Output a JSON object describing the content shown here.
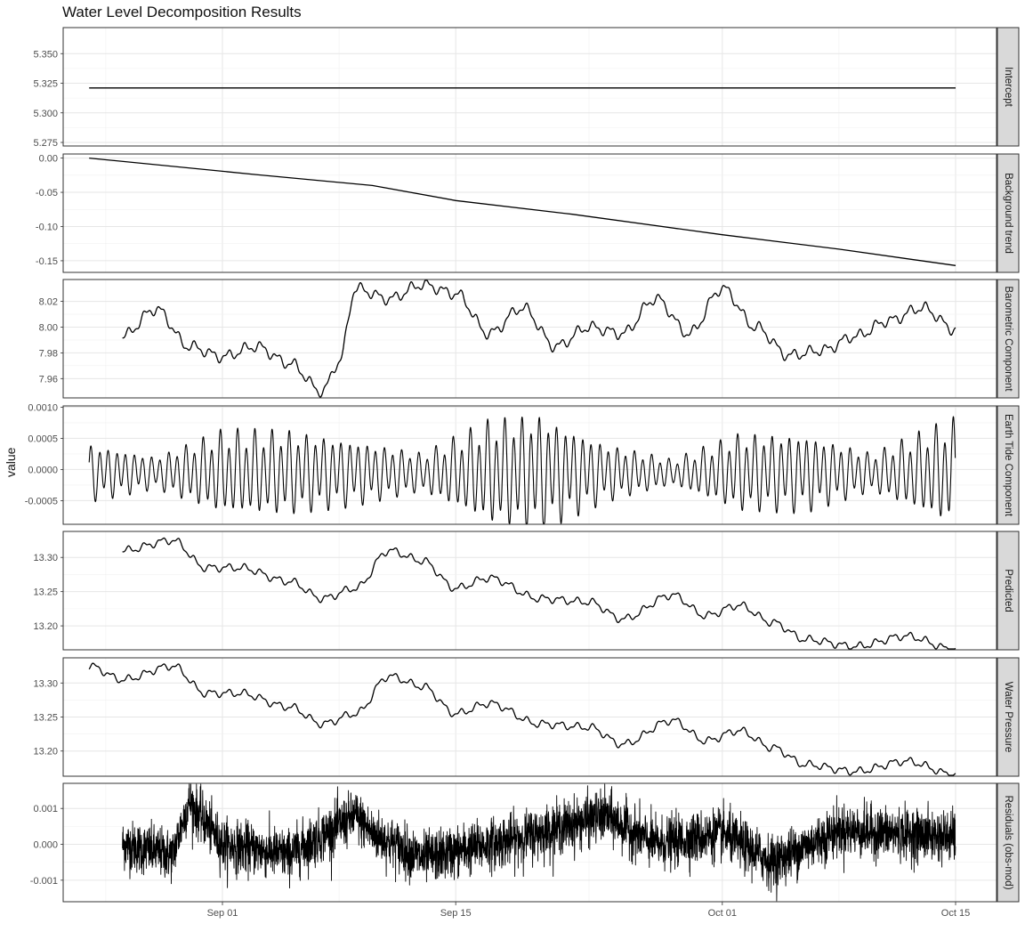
{
  "chart_data": {
    "type": "line",
    "title": "Water Level Decomposition Results",
    "ylabel": "value",
    "xlabel": "",
    "x_ticks": [
      "Sep 01",
      "Sep 15",
      "Oct 01",
      "Oct 15"
    ],
    "x_range": [
      "2024-08-24",
      "2024-10-15"
    ],
    "grid": true,
    "theme": "facet-wrap, free y-scales, strip labels on right",
    "panels": [
      {
        "name": "Intercept",
        "ylim": [
          5.272,
          5.372
        ],
        "y_ticks": [
          "5.350",
          "5.325",
          "5.300",
          "5.275"
        ],
        "x": [
          "2024-08-24",
          "2024-10-15"
        ],
        "values": [
          5.321,
          5.321
        ]
      },
      {
        "name": "Background trend",
        "ylim": [
          -0.167,
          0.006
        ],
        "y_ticks": [
          "0.00",
          "-0.05",
          "-0.10",
          "-0.15"
        ],
        "x": [
          "2024-08-24",
          "2024-09-03",
          "2024-09-10",
          "2024-09-15",
          "2024-09-22",
          "2024-10-01",
          "2024-10-08",
          "2024-10-15"
        ],
        "values": [
          0.0,
          -0.024,
          -0.04,
          -0.062,
          -0.082,
          -0.112,
          -0.133,
          -0.157
        ]
      },
      {
        "name": "Barometric Component",
        "ylim": [
          7.945,
          8.037
        ],
        "y_ticks": [
          "8.02",
          "8.00",
          "7.98",
          "7.96"
        ],
        "x": [
          "2024-08-26",
          "2024-08-28",
          "2024-08-30",
          "2024-09-01",
          "2024-09-03",
          "2024-09-05",
          "2024-09-07",
          "2024-09-08",
          "2024-09-09",
          "2024-09-11",
          "2024-09-13",
          "2024-09-15",
          "2024-09-17",
          "2024-09-19",
          "2024-09-21",
          "2024-09-23",
          "2024-09-25",
          "2024-09-27",
          "2024-09-29",
          "2024-10-01",
          "2024-10-03",
          "2024-10-05",
          "2024-10-07",
          "2024-10-09",
          "2024-10-11",
          "2024-10-13",
          "2024-10-15"
        ],
        "values": [
          7.993,
          8.014,
          7.985,
          7.977,
          7.985,
          7.972,
          7.95,
          7.973,
          8.03,
          8.022,
          8.033,
          8.026,
          7.995,
          8.015,
          7.985,
          8.0,
          7.995,
          8.022,
          7.995,
          8.03,
          8.0,
          7.978,
          7.982,
          7.993,
          8.005,
          8.015,
          7.998
        ]
      },
      {
        "name": "Earth Tide Component",
        "ylim": [
          -0.00088,
          0.00102
        ],
        "y_ticks": [
          "0.0010",
          "0.0005",
          "0.0000",
          "-0.0005"
        ],
        "x": [
          "2024-08-24",
          "2024-08-28",
          "2024-09-01",
          "2024-09-05",
          "2024-09-09",
          "2024-09-13",
          "2024-09-17",
          "2024-09-20",
          "2024-09-24",
          "2024-09-28",
          "2024-10-02",
          "2024-10-06",
          "2024-10-10",
          "2024-10-15"
        ],
        "values": [
          0.00045,
          0.00025,
          0.00065,
          0.00065,
          0.0005,
          0.0003,
          0.0008,
          0.0009,
          0.00045,
          0.0002,
          0.0006,
          0.0006,
          0.0003,
          0.00085
        ]
      },
      {
        "name": "Predicted",
        "ylim": [
          13.165,
          13.338
        ],
        "y_ticks": [
          "13.30",
          "13.25",
          "13.20"
        ],
        "x": [
          "2024-08-26",
          "2024-08-29",
          "2024-08-31",
          "2024-09-02",
          "2024-09-05",
          "2024-09-07",
          "2024-09-09",
          "2024-09-11",
          "2024-09-13",
          "2024-09-15",
          "2024-09-17",
          "2024-09-20",
          "2024-09-23",
          "2024-09-25",
          "2024-09-28",
          "2024-09-30",
          "2024-10-02",
          "2024-10-04",
          "2024-10-06",
          "2024-10-09",
          "2024-10-12",
          "2024-10-15"
        ],
        "values": [
          13.31,
          13.325,
          13.285,
          13.285,
          13.265,
          13.24,
          13.255,
          13.31,
          13.295,
          13.255,
          13.27,
          13.24,
          13.235,
          13.21,
          13.245,
          13.215,
          13.23,
          13.205,
          13.18,
          13.17,
          13.185,
          13.165
        ]
      },
      {
        "name": "Water Pressure",
        "ylim": [
          13.163,
          13.337
        ],
        "y_ticks": [
          "13.30",
          "13.25",
          "13.20"
        ],
        "x": [
          "2024-08-24",
          "2024-08-26",
          "2024-08-29",
          "2024-08-31",
          "2024-09-02",
          "2024-09-05",
          "2024-09-07",
          "2024-09-09",
          "2024-09-11",
          "2024-09-13",
          "2024-09-15",
          "2024-09-17",
          "2024-09-20",
          "2024-09-23",
          "2024-09-25",
          "2024-09-28",
          "2024-09-30",
          "2024-10-02",
          "2024-10-04",
          "2024-10-06",
          "2024-10-09",
          "2024-10-12",
          "2024-10-15"
        ],
        "values": [
          13.325,
          13.305,
          13.325,
          13.285,
          13.285,
          13.265,
          13.24,
          13.255,
          13.31,
          13.295,
          13.255,
          13.27,
          13.24,
          13.235,
          13.21,
          13.245,
          13.215,
          13.23,
          13.205,
          13.18,
          13.17,
          13.185,
          13.165
        ]
      },
      {
        "name": "Residuals (obs-mod)",
        "ylim": [
          -0.0016,
          0.0017
        ],
        "y_ticks": [
          "0.001",
          "0.000",
          "-0.001"
        ],
        "x": [
          "2024-08-26",
          "2024-08-29",
          "2024-08-30",
          "2024-09-01",
          "2024-09-05",
          "2024-09-09",
          "2024-09-10",
          "2024-09-13",
          "2024-09-19",
          "2024-09-24",
          "2024-09-27",
          "2024-10-01",
          "2024-10-04",
          "2024-10-08",
          "2024-10-15"
        ],
        "values": [
          0.0,
          -0.0003,
          0.0012,
          0.0,
          -0.0003,
          0.0008,
          0.0003,
          -0.0004,
          0.0002,
          0.0008,
          0.0,
          0.0003,
          -0.0005,
          0.0004,
          0.0002
        ]
      }
    ]
  }
}
